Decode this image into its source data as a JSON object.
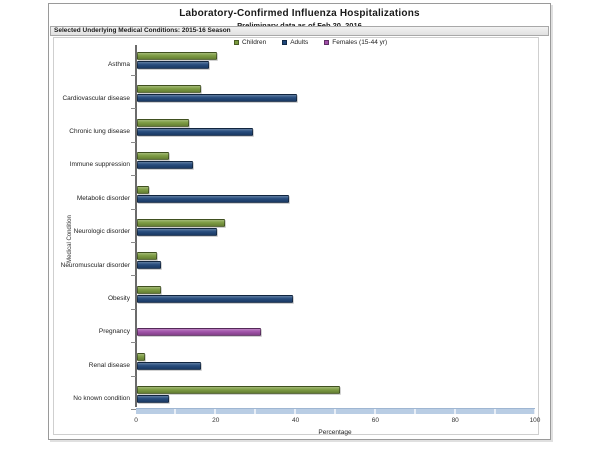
{
  "title": "Laboratory-Confirmed Influenza Hospitalizations",
  "subtitle": "Preliminary data as of Feb 20, 2016",
  "panel_header": "Selected Underlying Medical Conditions: 2015-16 Season",
  "colors": {
    "children": "#7a9a3d",
    "adults": "#1f4679",
    "females": "#a04fa8",
    "axis_strip": "#b9cde4",
    "axis_strip_divider": "#e8eef6"
  },
  "chart_data": {
    "type": "bar",
    "orientation": "horizontal",
    "title": "Laboratory-Confirmed Influenza Hospitalizations",
    "subtitle": "Preliminary data as of Feb 20, 2016",
    "xlabel": "Percentage",
    "ylabel": "Medical Condition",
    "xlim": [
      0,
      100
    ],
    "xticks": [
      0,
      20,
      40,
      60,
      80,
      100
    ],
    "grid": false,
    "legend_position": "top",
    "categories": [
      "Asthma",
      "Cardiovascular disease",
      "Chronic lung disease",
      "Immune suppression",
      "Metabolic disorder",
      "Neurologic disorder",
      "Neuromuscular disorder",
      "Obesity",
      "Pregnancy",
      "Renal disease",
      "No known condition"
    ],
    "series": [
      {
        "name": "Children",
        "color": "#7a9a3d",
        "slot": 0,
        "values": [
          20,
          16,
          13,
          8,
          3,
          22,
          5,
          6,
          null,
          2,
          51
        ]
      },
      {
        "name": "Adults",
        "color": "#1f4679",
        "slot": 1,
        "values": [
          18,
          40,
          29,
          14,
          38,
          20,
          6,
          39,
          null,
          16,
          8
        ]
      },
      {
        "name": "Females (15-44 yr)",
        "color": "#a04fa8",
        "slot": 1,
        "values": [
          null,
          null,
          null,
          null,
          null,
          null,
          null,
          null,
          31,
          null,
          null
        ]
      }
    ]
  }
}
